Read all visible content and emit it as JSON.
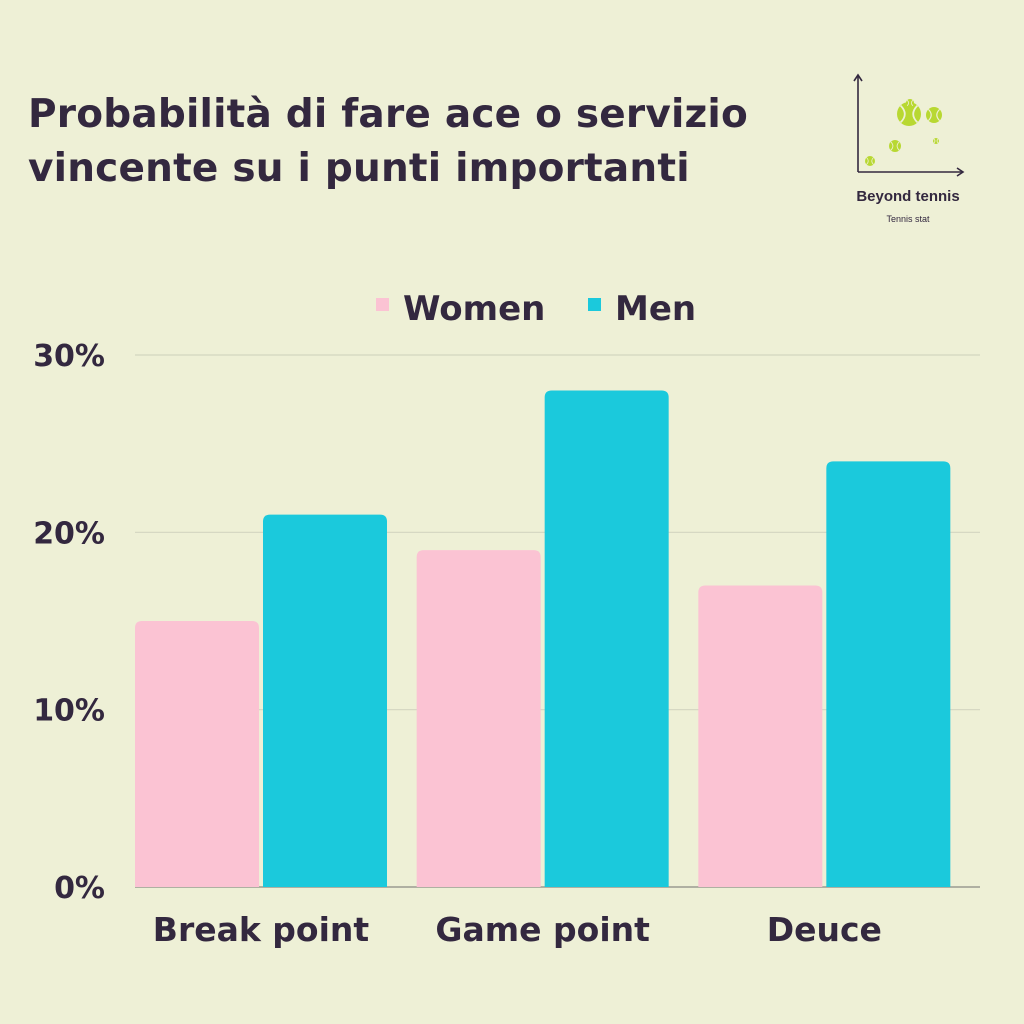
{
  "title": {
    "line1": "Probabilità di fare ace o servizio",
    "line2": "vincente su i punti importanti"
  },
  "logo": {
    "name": "Beyond tennis",
    "subtitle": "Tennis stat",
    "icon": "tennis-balls-scatter-icon",
    "ball_color": "#b8d832"
  },
  "colors": {
    "background": "#eef0d6",
    "text": "#33283f",
    "grid": "#d3d5c0"
  },
  "chart_data": {
    "type": "bar",
    "categories": [
      "Break point",
      "Game point",
      "Deuce"
    ],
    "series": [
      {
        "name": "Women",
        "color": "#fbc3d3",
        "values": [
          15,
          19,
          17
        ]
      },
      {
        "name": "Men",
        "color": "#1bc9dc",
        "values": [
          21,
          28,
          24
        ]
      }
    ],
    "ylim": [
      0,
      30
    ],
    "yticks": [
      0,
      10,
      20,
      30
    ],
    "ytick_labels": [
      "0%",
      "10%",
      "20%",
      "30%"
    ],
    "grid": true,
    "legend_position": "top-center"
  }
}
